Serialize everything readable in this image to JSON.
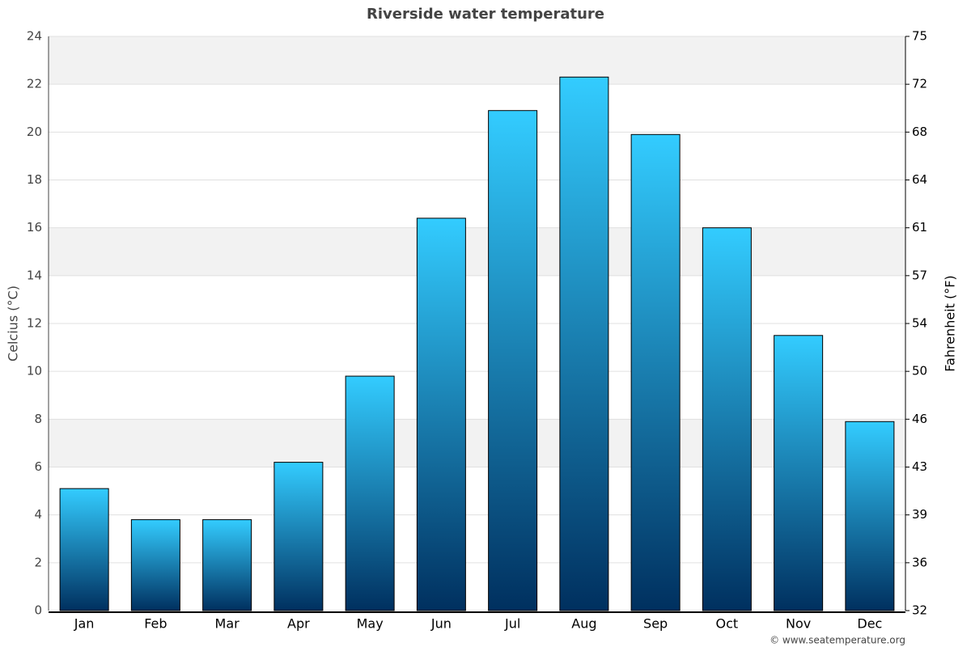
{
  "chart_data": {
    "type": "bar",
    "title": "Riverside water temperature",
    "categories": [
      "Jan",
      "Feb",
      "Mar",
      "Apr",
      "May",
      "Jun",
      "Jul",
      "Aug",
      "Sep",
      "Oct",
      "Nov",
      "Dec"
    ],
    "values": [
      5.1,
      3.8,
      3.8,
      6.2,
      9.8,
      16.4,
      20.9,
      22.3,
      19.9,
      16.0,
      11.5,
      7.9
    ],
    "gradient": [
      "#33ccff",
      "#00305f"
    ],
    "ylabel": "Celcius (°C)",
    "y2label": "Fahrenheit (°F)",
    "ylim": [
      0,
      24
    ],
    "yticks": [
      0,
      2,
      4,
      6,
      8,
      10,
      12,
      14,
      16,
      18,
      20,
      22,
      24
    ],
    "y2lim": [
      32,
      75.2
    ],
    "y2ticks": [
      32,
      {
        "value": 35.6,
        "label": "36"
      },
      {
        "value": 39.2,
        "label": "39"
      },
      {
        "value": 42.8,
        "label": "43"
      },
      {
        "value": 46.4,
        "label": "46"
      },
      50,
      {
        "value": 53.6,
        "label": "54"
      },
      {
        "value": 57.2,
        "label": "57"
      },
      {
        "value": 60.8,
        "label": "61"
      },
      {
        "value": 64.4,
        "label": "64"
      },
      68,
      {
        "value": 71.6,
        "label": "72"
      },
      {
        "value": 75.2,
        "label": "75"
      }
    ],
    "grid": true,
    "credit": "© www.seatemperature.org"
  }
}
